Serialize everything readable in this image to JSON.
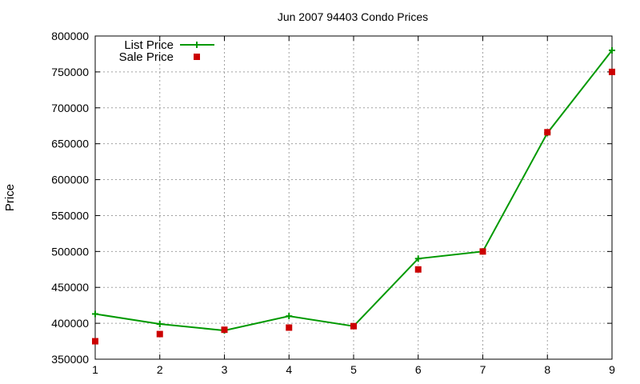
{
  "chart_data": {
    "type": "line",
    "title": "Jun 2007 94403 Condo Prices",
    "xlabel": "",
    "ylabel": "Price",
    "x": [
      1,
      2,
      3,
      4,
      5,
      6,
      7,
      8,
      9
    ],
    "xlim": [
      1,
      9
    ],
    "ylim": [
      350000,
      800000
    ],
    "x_ticks": [
      "1",
      "2",
      "3",
      "4",
      "5",
      "6",
      "7",
      "8",
      "9"
    ],
    "y_ticks": [
      "350000",
      "400000",
      "450000",
      "500000",
      "550000",
      "600000",
      "650000",
      "700000",
      "750000",
      "800000"
    ],
    "grid": true,
    "legend_position": "top-left",
    "series": [
      {
        "name": "List Price",
        "style": "line-with-plus-markers",
        "color": "#009900",
        "values": [
          413000,
          399000,
          390000,
          410000,
          396000,
          490000,
          500000,
          665000,
          780000
        ]
      },
      {
        "name": "Sale Price",
        "style": "square-points",
        "color": "#cc0000",
        "values": [
          375000,
          385000,
          391000,
          394000,
          396000,
          475000,
          500000,
          666000,
          750000
        ]
      }
    ]
  }
}
